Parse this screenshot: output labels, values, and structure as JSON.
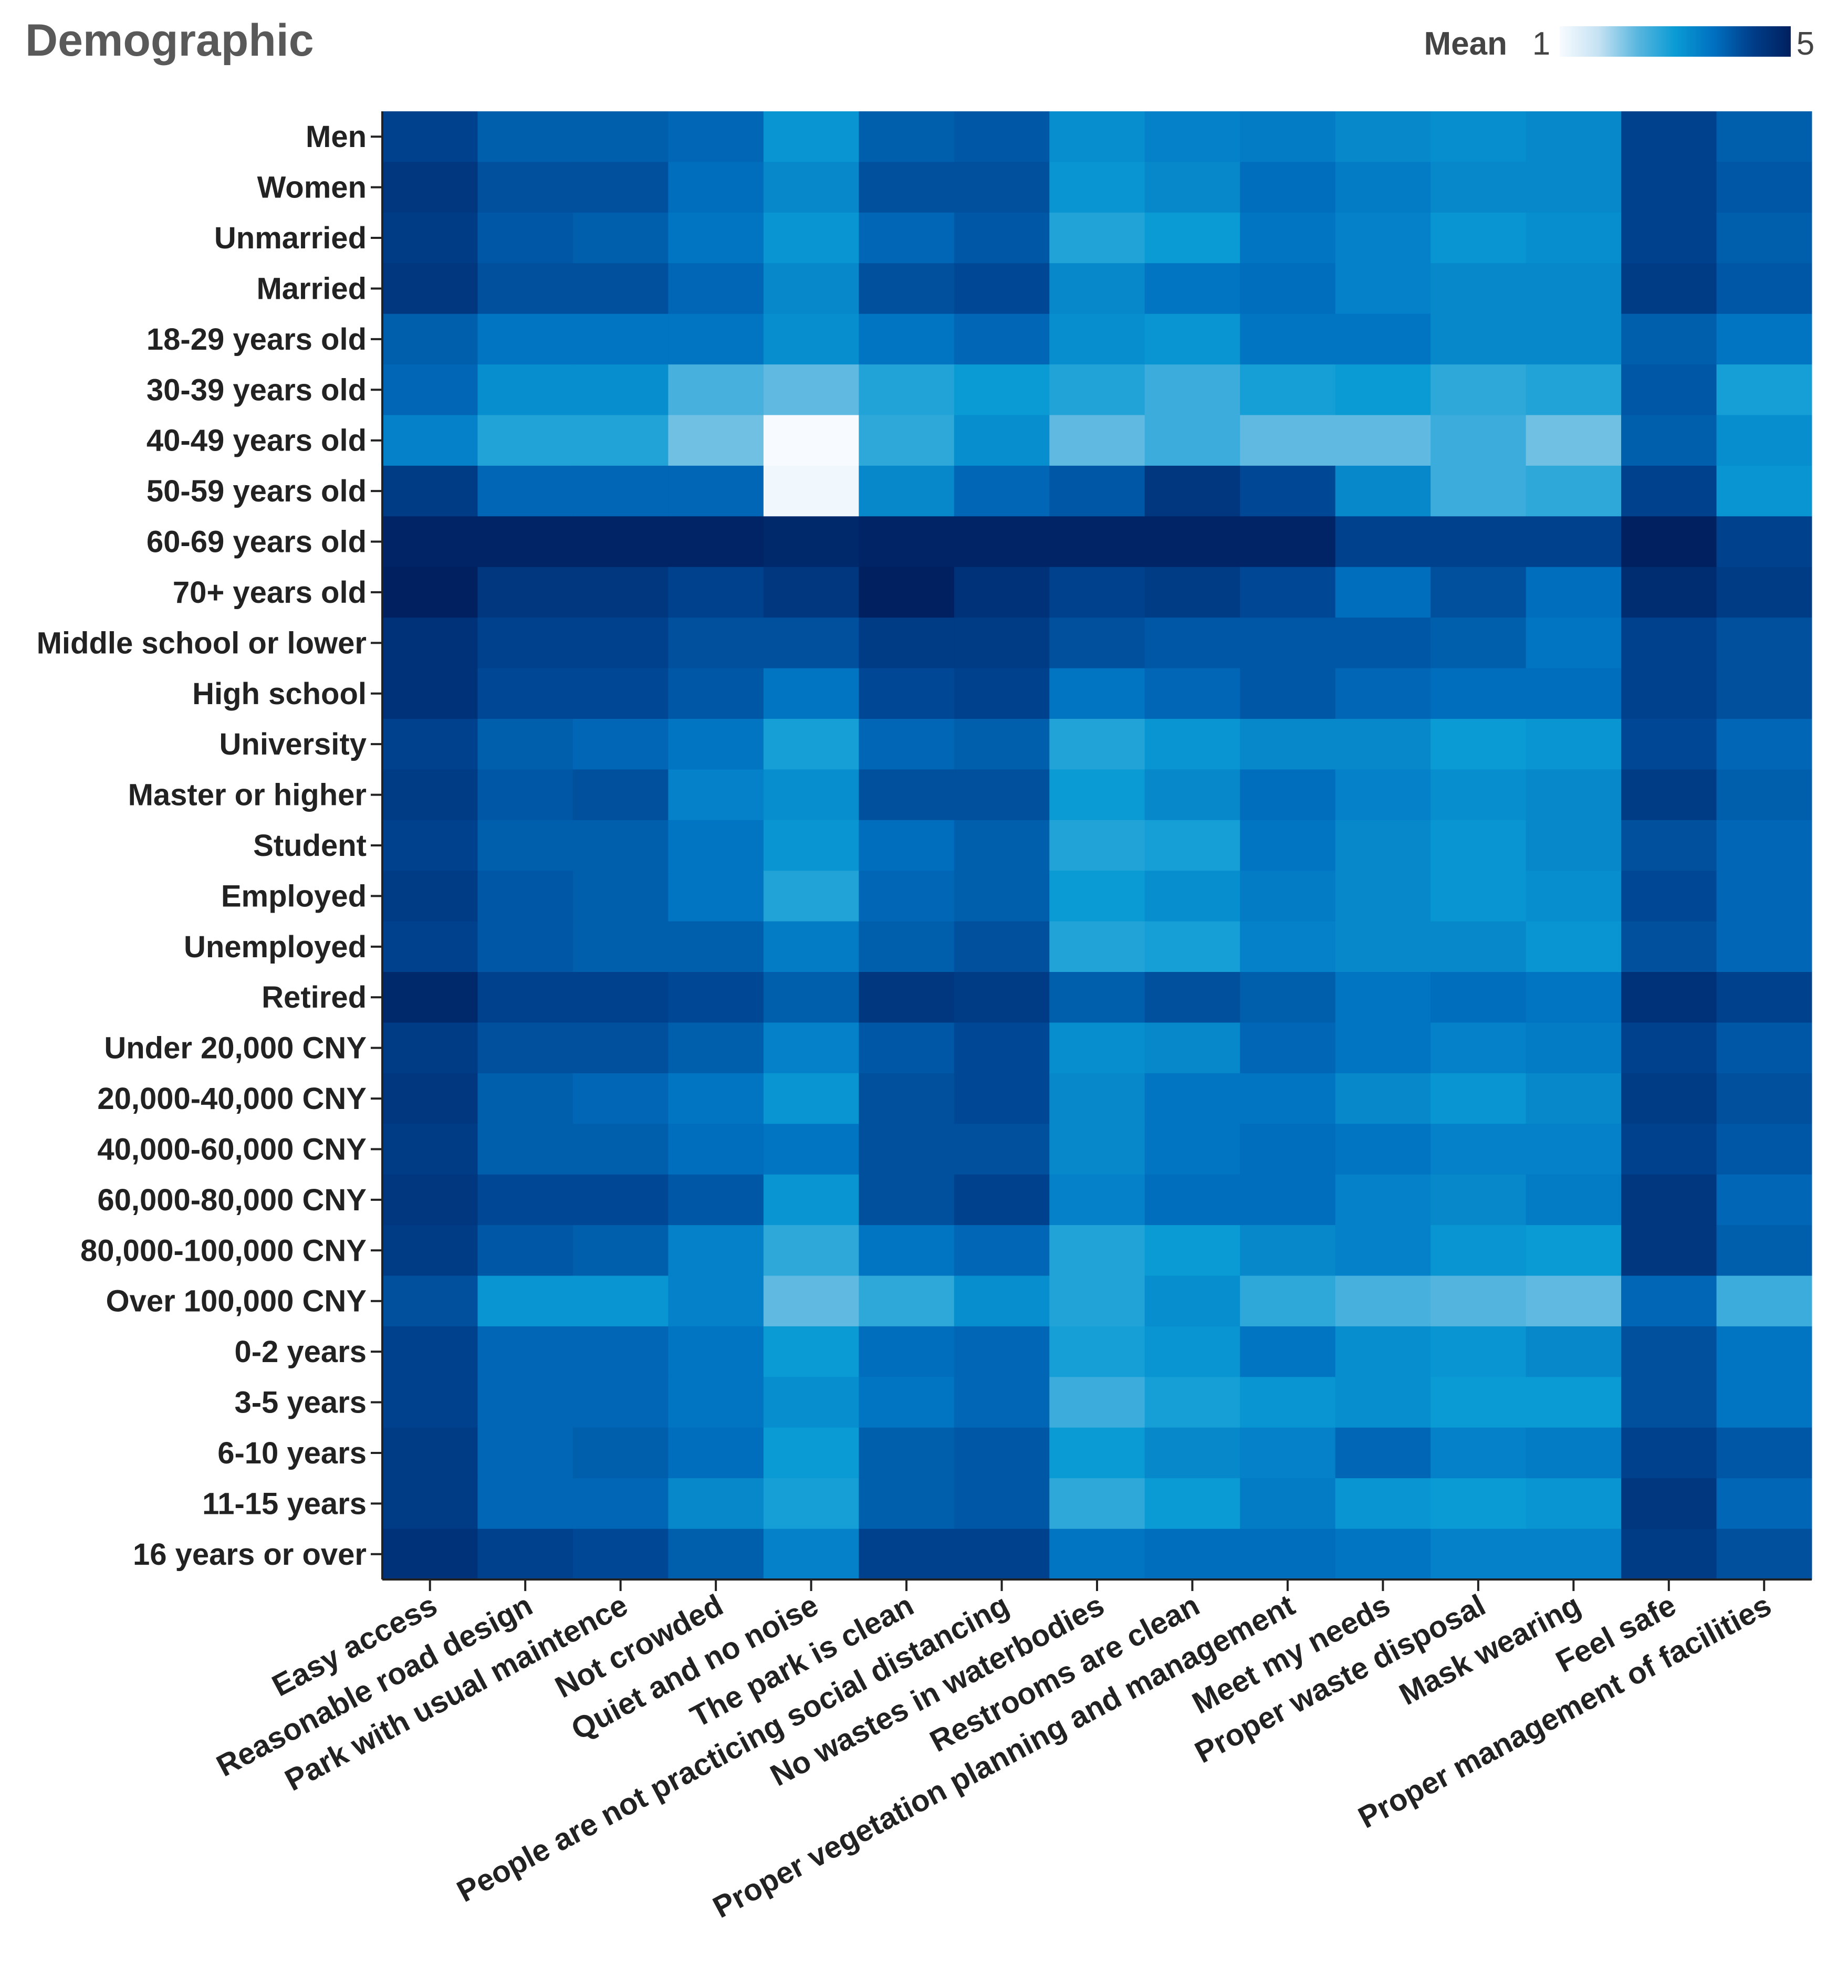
{
  "chart_data": {
    "type": "heatmap",
    "title": "Demographic",
    "legend": {
      "title": "Mean",
      "min_label": "1",
      "max_label": "5",
      "min": 1,
      "max": 5,
      "colors": [
        "#f7fbff",
        "#c6e2f3",
        "#5bb7df",
        "#0a9bd4",
        "#0070c0",
        "#003e8a",
        "#00205f"
      ]
    },
    "rows": [
      "Men",
      "Women",
      "Unmarried",
      "Married",
      "18-29 years old",
      "30-39 years old",
      "40-49 years old",
      "50-59 years old",
      "60-69 years old",
      "70+ years old",
      "Middle school or lower",
      "High school",
      "University",
      "Master or higher",
      "Student",
      "Employed",
      "Unemployed",
      "Retired",
      "Under 20,000 CNY",
      "20,000-40,000 CNY",
      "40,000-60,000 CNY",
      "60,000-80,000 CNY",
      "80,000-100,000 CNY",
      "Over 100,000 CNY",
      "0-2 years",
      "3-5 years",
      "6-10 years",
      "11-15 years",
      "16 years or over"
    ],
    "columns": [
      "Easy access",
      "Reasonable road design",
      "Park with usual maintence",
      "Not crowded",
      "Quiet and no noise",
      "The park is clean",
      "People are not practicing social distancing",
      "No wastes in waterbodies",
      "Restrooms are clean",
      "Proper vegetation planning and management",
      "Meet my needs",
      "Proper waste disposal",
      "Mask wearing",
      "Feel safe",
      "Proper management of facilities"
    ],
    "values": [
      [
        4.3,
        3.9,
        3.9,
        3.8,
        3.1,
        3.9,
        4.0,
        3.2,
        3.4,
        3.5,
        3.3,
        3.2,
        3.3,
        4.3,
        3.9
      ],
      [
        4.5,
        4.1,
        4.1,
        3.7,
        3.3,
        4.1,
        4.1,
        3.1,
        3.3,
        3.7,
        3.5,
        3.3,
        3.3,
        4.3,
        4.0
      ],
      [
        4.4,
        4.0,
        3.9,
        3.6,
        3.1,
        3.8,
        4.0,
        2.8,
        3.0,
        3.6,
        3.4,
        3.1,
        3.2,
        4.3,
        3.9
      ],
      [
        4.5,
        4.1,
        4.1,
        3.8,
        3.3,
        4.1,
        4.2,
        3.3,
        3.6,
        3.7,
        3.4,
        3.3,
        3.3,
        4.4,
        4.0
      ],
      [
        3.9,
        3.6,
        3.6,
        3.6,
        3.2,
        3.6,
        3.8,
        3.2,
        3.1,
        3.6,
        3.6,
        3.3,
        3.3,
        3.9,
        3.6
      ],
      [
        3.8,
        3.2,
        3.2,
        2.5,
        2.3,
        2.8,
        3.0,
        2.8,
        2.6,
        2.9,
        3.0,
        2.7,
        2.8,
        4.0,
        2.9
      ],
      [
        3.4,
        2.8,
        2.8,
        2.2,
        1.0,
        2.7,
        3.2,
        2.3,
        2.6,
        2.3,
        2.3,
        2.6,
        2.2,
        3.9,
        3.2
      ],
      [
        4.4,
        3.8,
        3.8,
        3.8,
        1.1,
        3.3,
        3.8,
        4.0,
        4.5,
        4.2,
        3.3,
        2.6,
        2.7,
        4.3,
        3.1
      ],
      [
        4.9,
        4.9,
        4.9,
        4.9,
        4.8,
        4.9,
        4.9,
        4.9,
        4.9,
        4.9,
        4.3,
        4.3,
        4.3,
        5.0,
        4.3
      ],
      [
        5.0,
        4.5,
        4.5,
        4.3,
        4.5,
        5.0,
        4.6,
        4.3,
        4.4,
        4.2,
        3.7,
        4.1,
        3.7,
        4.7,
        4.4
      ],
      [
        4.6,
        4.3,
        4.3,
        4.1,
        4.1,
        4.4,
        4.4,
        4.1,
        4.0,
        4.0,
        4.0,
        3.9,
        3.6,
        4.3,
        4.1
      ],
      [
        4.6,
        4.2,
        4.2,
        4.0,
        3.6,
        4.2,
        4.3,
        3.6,
        3.8,
        4.0,
        3.8,
        3.7,
        3.7,
        4.3,
        4.1
      ],
      [
        4.3,
        3.9,
        3.8,
        3.6,
        2.9,
        3.8,
        3.9,
        2.8,
        3.1,
        3.3,
        3.3,
        3.0,
        3.1,
        4.2,
        3.8
      ],
      [
        4.4,
        4.0,
        4.1,
        3.4,
        3.2,
        4.1,
        4.1,
        3.0,
        3.3,
        3.7,
        3.4,
        3.2,
        3.3,
        4.4,
        3.9
      ],
      [
        4.3,
        3.9,
        3.9,
        3.6,
        3.1,
        3.7,
        3.9,
        2.8,
        2.9,
        3.6,
        3.3,
        3.1,
        3.3,
        4.1,
        3.8
      ],
      [
        4.4,
        4.0,
        3.9,
        3.6,
        2.8,
        3.8,
        3.9,
        3.0,
        3.2,
        3.5,
        3.3,
        3.1,
        3.2,
        4.2,
        3.8
      ],
      [
        4.3,
        4.0,
        3.9,
        3.9,
        3.5,
        3.9,
        4.1,
        2.8,
        2.9,
        3.4,
        3.3,
        3.3,
        3.1,
        4.1,
        3.8
      ],
      [
        4.8,
        4.3,
        4.3,
        4.2,
        3.9,
        4.5,
        4.4,
        3.9,
        4.1,
        3.9,
        3.6,
        3.7,
        3.6,
        4.6,
        4.3
      ],
      [
        4.4,
        4.1,
        4.1,
        3.9,
        3.4,
        4.0,
        4.2,
        3.2,
        3.3,
        3.8,
        3.6,
        3.4,
        3.5,
        4.3,
        4.0
      ],
      [
        4.5,
        3.9,
        3.8,
        3.6,
        3.1,
        4.1,
        4.2,
        3.3,
        3.6,
        3.6,
        3.3,
        3.1,
        3.3,
        4.4,
        4.1
      ],
      [
        4.4,
        3.9,
        3.9,
        3.7,
        3.6,
        4.1,
        4.1,
        3.3,
        3.6,
        3.7,
        3.6,
        3.4,
        3.4,
        4.3,
        4.0
      ],
      [
        4.5,
        4.2,
        4.2,
        4.0,
        3.1,
        4.1,
        4.3,
        3.4,
        3.7,
        3.7,
        3.4,
        3.3,
        3.5,
        4.5,
        3.8
      ],
      [
        4.4,
        4.0,
        3.9,
        3.4,
        2.7,
        3.6,
        3.8,
        2.8,
        3.0,
        3.3,
        3.4,
        3.1,
        3.0,
        4.5,
        3.9
      ],
      [
        4.1,
        3.1,
        3.1,
        3.4,
        2.3,
        2.7,
        3.2,
        2.8,
        3.2,
        2.7,
        2.5,
        2.4,
        2.3,
        3.8,
        2.6
      ],
      [
        4.3,
        3.8,
        3.8,
        3.6,
        3.0,
        3.7,
        3.8,
        2.9,
        3.1,
        3.6,
        3.2,
        3.1,
        3.3,
        4.1,
        3.6
      ],
      [
        4.3,
        3.8,
        3.8,
        3.6,
        3.2,
        3.6,
        3.8,
        2.6,
        2.9,
        3.1,
        3.2,
        3.0,
        3.0,
        4.1,
        3.6
      ],
      [
        4.4,
        3.8,
        3.9,
        3.7,
        3.0,
        3.9,
        4.0,
        3.0,
        3.3,
        3.4,
        3.8,
        3.4,
        3.5,
        4.3,
        4.0
      ],
      [
        4.4,
        3.8,
        3.8,
        3.3,
        2.9,
        3.9,
        4.0,
        2.7,
        3.0,
        3.5,
        3.1,
        3.0,
        3.1,
        4.5,
        3.8
      ],
      [
        4.6,
        4.3,
        4.2,
        3.9,
        3.4,
        4.3,
        4.3,
        3.6,
        3.7,
        3.7,
        3.6,
        3.4,
        3.4,
        4.4,
        4.1
      ]
    ]
  }
}
